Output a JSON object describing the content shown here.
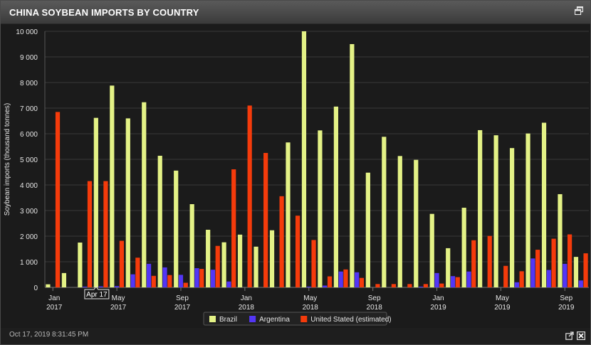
{
  "header": {
    "title": "CHINA SOYBEAN IMPORTS BY COUNTRY"
  },
  "footer": {
    "timestamp": "Oct 17, 2019 8:31:45 PM"
  },
  "tooltip": {
    "label": "Apr 17"
  },
  "icons": {
    "popout": "window-popout-icon",
    "export": "external-link-icon",
    "excel": "excel-export-icon"
  },
  "colors": {
    "brazil": "#e4f286",
    "argentina": "#5336f5",
    "us": "#f53b0b"
  },
  "chart_data": {
    "type": "bar",
    "ylabel": "Soybean imports (thousand tonnes)",
    "ylim": [
      0,
      10000
    ],
    "y_ticks": [
      "0",
      "1 000",
      "2 000",
      "3 000",
      "4 000",
      "5 000",
      "6 000",
      "7 000",
      "8 000",
      "9 000",
      "10 000"
    ],
    "x_tick_labels": [
      {
        "index": 0,
        "month": "Jan",
        "year": "2017"
      },
      {
        "index": 4,
        "month": "May",
        "year": "2017"
      },
      {
        "index": 8,
        "month": "Sep",
        "year": "2017"
      },
      {
        "index": 12,
        "month": "Jan",
        "year": "2018"
      },
      {
        "index": 16,
        "month": "May",
        "year": "2018"
      },
      {
        "index": 20,
        "month": "Sep",
        "year": "2018"
      },
      {
        "index": 24,
        "month": "Jan",
        "year": "2019"
      },
      {
        "index": 28,
        "month": "May",
        "year": "2019"
      },
      {
        "index": 32,
        "month": "Sep",
        "year": "2019"
      }
    ],
    "legend_position": "bottom",
    "series": [
      {
        "name": "Brazil",
        "color": "#e4f286",
        "values": [
          120,
          560,
          1750,
          6620,
          7880,
          6600,
          7230,
          5140,
          4560,
          3250,
          2250,
          1760,
          2060,
          1590,
          2230,
          5660,
          10000,
          6130,
          7060,
          9500,
          4480,
          5880,
          5130,
          4980,
          2870,
          1530,
          3110,
          6140,
          5940,
          5440,
          6010,
          6430,
          3640,
          1190
        ]
      },
      {
        "name": "Argentina",
        "color": "#5336f5",
        "values": [
          0,
          0,
          30,
          40,
          50,
          510,
          920,
          780,
          490,
          750,
          690,
          230,
          0,
          0,
          0,
          0,
          30,
          70,
          620,
          590,
          0,
          0,
          0,
          30,
          560,
          440,
          620,
          0,
          0,
          200,
          1130,
          680,
          920,
          270
        ]
      },
      {
        "name": "United Stated (estimated)",
        "color": "#f53b0b",
        "values": [
          6850,
          0,
          4150,
          4150,
          1820,
          1160,
          450,
          480,
          180,
          720,
          1620,
          4610,
          7100,
          5250,
          3560,
          2800,
          1850,
          430,
          700,
          370,
          130,
          130,
          130,
          130,
          150,
          400,
          1840,
          2010,
          840,
          630,
          1470,
          1900,
          2070,
          1330
        ]
      }
    ]
  }
}
